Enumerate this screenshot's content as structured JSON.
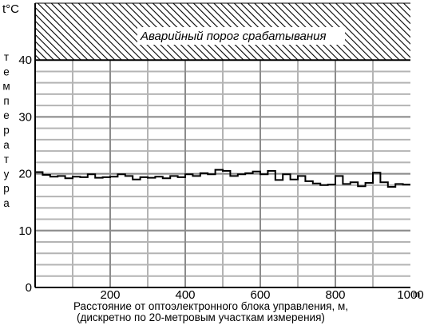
{
  "chart_data": {
    "type": "line",
    "step": true,
    "y_unit_label": "t°C",
    "ylabel_letters": [
      "т",
      "е",
      "м",
      "п",
      "е",
      "р",
      "а",
      "т",
      "у",
      "р",
      "а"
    ],
    "x_unit_label": "m",
    "xlabel_line1": "Расстояние от оптоэлектронного блока управления, м,",
    "xlabel_line2": "(дискретно по 20-метровым участкам измерения)",
    "xlim": [
      0,
      1000
    ],
    "ylim": [
      0,
      50
    ],
    "xticks": [
      {
        "value": 200,
        "label": "200"
      },
      {
        "value": 400,
        "label": "400"
      },
      {
        "value": 600,
        "label": "600"
      },
      {
        "value": 800,
        "label": "800"
      },
      {
        "value": 1000,
        "label": "1000"
      }
    ],
    "yticks": [
      {
        "value": 0,
        "label": "0"
      },
      {
        "value": 10,
        "label": "10"
      },
      {
        "value": 20,
        "label": "20"
      },
      {
        "value": 30,
        "label": "30"
      },
      {
        "value": 40,
        "label": "40"
      }
    ],
    "grid": true,
    "alarm_zone": {
      "from": 40,
      "to": 50,
      "label": "Аварийный порог срабатывания",
      "pattern": "hatched"
    },
    "segment_length_m": 20,
    "series": [
      {
        "x_start": [
          0,
          20,
          40,
          60,
          80,
          100,
          120,
          140,
          160,
          180,
          200,
          220,
          240,
          260,
          280,
          300,
          320,
          340,
          360,
          380,
          400,
          420,
          440,
          460,
          480,
          500,
          520,
          540,
          560,
          580,
          600,
          620,
          640,
          660,
          680,
          700,
          720,
          740,
          760,
          780,
          800,
          820,
          840,
          860,
          880,
          900,
          920,
          940,
          960,
          980
        ],
        "values": [
          20.3,
          19.8,
          19.5,
          19.6,
          19.2,
          19.5,
          19.4,
          19.9,
          19.3,
          19.4,
          19.5,
          19.9,
          19.6,
          19.0,
          19.4,
          19.3,
          19.5,
          19.2,
          19.6,
          19.4,
          19.9,
          19.6,
          20.1,
          19.9,
          20.7,
          20.5,
          19.6,
          19.9,
          20.1,
          20.4,
          19.9,
          20.5,
          18.9,
          19.9,
          19.0,
          19.6,
          18.7,
          18.3,
          18.0,
          18.1,
          19.6,
          18.2,
          18.5,
          17.8,
          18.4,
          20.2,
          18.5,
          17.7,
          18.2,
          18.1
        ]
      }
    ]
  }
}
